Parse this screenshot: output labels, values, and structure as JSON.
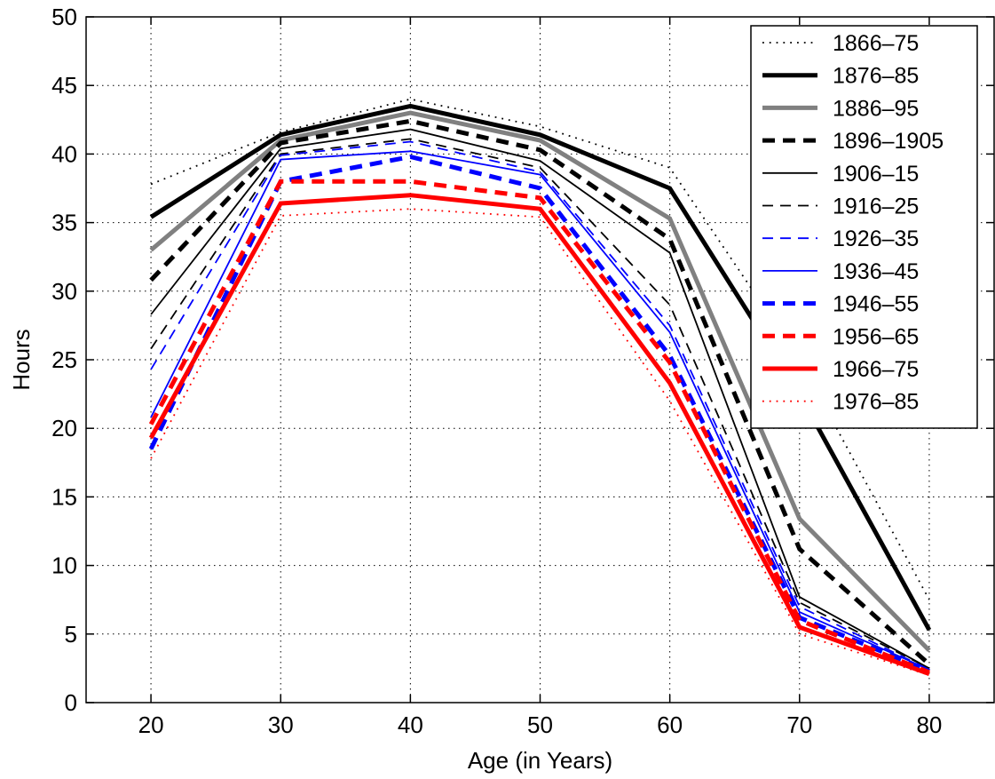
{
  "chart_data": {
    "type": "line",
    "title": "",
    "xlabel": "Age (in Years)",
    "ylabel": "Hours",
    "xlim": [
      15,
      85
    ],
    "ylim": [
      0,
      50
    ],
    "xticks": [
      20,
      30,
      40,
      50,
      60,
      70,
      80
    ],
    "yticks": [
      0,
      5,
      10,
      15,
      20,
      25,
      30,
      35,
      40,
      45,
      50
    ],
    "grid": true,
    "legend_position": "top-right",
    "x": [
      20,
      30,
      40,
      50,
      60,
      70,
      80
    ],
    "series": [
      {
        "name": "1866–75",
        "values": [
          37.8,
          41.6,
          44.0,
          42.0,
          39.0,
          25.0,
          7.5
        ],
        "color": "#000000",
        "style": "dotted",
        "width": "thin"
      },
      {
        "name": "1876–85",
        "values": [
          35.4,
          41.4,
          43.5,
          41.4,
          37.5,
          22.5,
          5.3
        ],
        "color": "#000000",
        "style": "solid",
        "width": "thick"
      },
      {
        "name": "1886–95",
        "values": [
          33.0,
          41.0,
          43.0,
          41.0,
          35.3,
          13.4,
          3.8
        ],
        "color": "#808080",
        "style": "solid",
        "width": "thick"
      },
      {
        "name": "1896–1905",
        "values": [
          30.8,
          40.8,
          42.4,
          40.3,
          33.8,
          11.2,
          2.8
        ],
        "color": "#000000",
        "style": "dashed",
        "width": "thick"
      },
      {
        "name": "1906–15",
        "values": [
          28.3,
          40.4,
          41.8,
          39.5,
          32.8,
          7.7,
          2.5
        ],
        "color": "#000000",
        "style": "solid",
        "width": "thin"
      },
      {
        "name": "1916–25",
        "values": [
          25.8,
          40.0,
          41.1,
          39.0,
          29.0,
          7.3,
          2.5
        ],
        "color": "#000000",
        "style": "dashed",
        "width": "thin"
      },
      {
        "name": "1926–35",
        "values": [
          24.3,
          39.9,
          40.9,
          38.7,
          27.5,
          7.0,
          2.4
        ],
        "color": "#0000ff",
        "style": "dashed",
        "width": "thin"
      },
      {
        "name": "1936–45",
        "values": [
          20.8,
          39.6,
          40.2,
          38.5,
          27.0,
          6.6,
          2.4
        ],
        "color": "#0000ff",
        "style": "solid",
        "width": "thin"
      },
      {
        "name": "1946–55",
        "values": [
          18.5,
          38.0,
          39.8,
          37.5,
          25.3,
          6.2,
          2.3
        ],
        "color": "#0000ff",
        "style": "dashed",
        "width": "thick"
      },
      {
        "name": "1956–65",
        "values": [
          20.3,
          38.0,
          38.0,
          36.8,
          24.8,
          6.0,
          2.2
        ],
        "color": "#ff0000",
        "style": "dashed",
        "width": "thick"
      },
      {
        "name": "1966–75",
        "values": [
          19.3,
          36.4,
          37.0,
          36.0,
          23.3,
          5.5,
          2.1
        ],
        "color": "#ff0000",
        "style": "solid",
        "width": "thick"
      },
      {
        "name": "1976–85",
        "values": [
          17.8,
          35.5,
          36.0,
          35.4,
          22.0,
          5.0,
          2.0
        ],
        "color": "#ff0000",
        "style": "dotted",
        "width": "thin"
      }
    ]
  }
}
